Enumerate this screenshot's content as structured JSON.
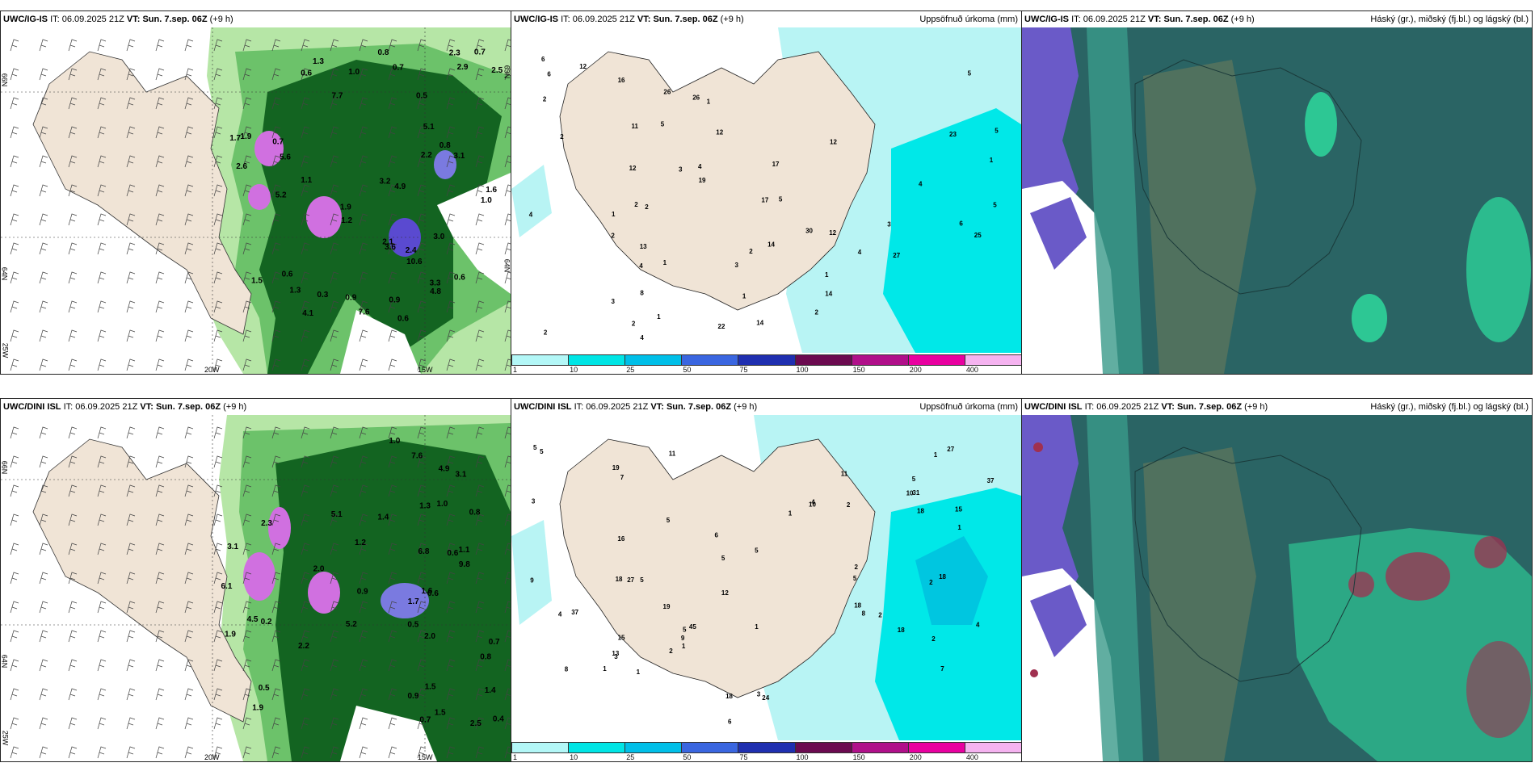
{
  "rows": [
    {
      "model": "UWC/IG-IS",
      "it_label": "IT:",
      "it_value": "06.09.2025 21Z",
      "vt_label": "VT:",
      "vt_value": "Sun. 7.sep. 06Z",
      "lead": "(+9 h)",
      "precip_title": "Uppsöfnuð úrkoma (mm)",
      "cloud_title": "Háský (gr.), miðský (fj.bl.) og lágský (bl.)"
    },
    {
      "model": "UWC/DINI ISL",
      "it_label": "IT:",
      "it_value": "06.09.2025 21Z",
      "vt_label": "VT:",
      "vt_value": "Sun. 7.sep. 06Z",
      "lead": "(+9 h)",
      "precip_title": "Uppsöfnuð úrkoma (mm)",
      "cloud_title": "Háský (gr.), miðský (fj.bl.) og lágský (bl.)"
    }
  ],
  "axis_labels": {
    "lon_20w": "20W",
    "lon_15w": "15W",
    "lat_66n": "66N",
    "lat_64n": "64N",
    "lon_25w": "25W",
    "lat_63n_right": "63N",
    "lat_64n_right": "64N"
  },
  "colorbar": {
    "ticks": [
      "1",
      "10",
      "25",
      "50",
      "75",
      "100",
      "150",
      "200",
      "400"
    ],
    "colors": [
      "#b3f7f7",
      "#00e5e5",
      "#00bfe8",
      "#3a66e0",
      "#1f2fb0",
      "#6b0a50",
      "#b0108a",
      "#e800a0",
      "#f5b3f0"
    ]
  },
  "colors": {
    "land": "#f0e4d6",
    "sea_light": "#b8f4f4",
    "sea_cyan": "#00e8e8",
    "sea_deep": "#00c6e0",
    "green_light": "#b6e6a6",
    "green_mid": "#6cc26a",
    "green_dark": "#0a5a1a",
    "violet": "#d070e0",
    "blue_violet": "#5a4ad0",
    "cloud_teal": "#2a6464",
    "cloud_purple": "#6a5ac8",
    "cloud_green": "#2ee0a0",
    "cloud_red": "#a03050"
  },
  "top_rain_values": [
    "0.6",
    "0.6",
    "0.6",
    "0.7",
    "0.8",
    "0.9",
    "1.0",
    "1.1",
    "1.2",
    "1.3",
    "1.5",
    "1.7",
    "1.9",
    "2.1",
    "2.2",
    "2.3",
    "2.6",
    "2.9",
    "3.0",
    "3.1",
    "3.3",
    "3.6",
    "4.1",
    "4.8",
    "4.9",
    "5.1",
    "5.2",
    "5.6",
    "7.6",
    "7.7",
    "10.6",
    "0.7",
    "0.5",
    "0.3",
    "1.3",
    "0.9",
    "0.8",
    "1.9",
    "1.6",
    "2.4",
    "1.0",
    "3.2",
    "2.5",
    "0.6",
    "0.7"
  ],
  "bottom_rain_values": [
    "0.5",
    "0.7",
    "0.6",
    "0.8",
    "0.9",
    "1.0",
    "1.1",
    "1.2",
    "1.4",
    "1.5",
    "1.6",
    "1.7",
    "1.9",
    "2.0",
    "2.2",
    "2.5",
    "3.1",
    "4.5",
    "4.9",
    "5.1",
    "5.2",
    "6.1",
    "6.8",
    "7.6",
    "9.8",
    "0.5",
    "2.3",
    "1.3",
    "0.4",
    "0.2",
    "0.8",
    "1.0",
    "3.1",
    "1.5",
    "2.0",
    "1.9",
    "1.4",
    "0.9",
    "0.6",
    "0.7"
  ],
  "top_accum_values": [
    "6",
    "6",
    "4",
    "5",
    "5",
    "1",
    "1",
    "1",
    "2",
    "4",
    "4",
    "5",
    "4",
    "2",
    "2",
    "3",
    "3",
    "3",
    "5",
    "4",
    "1",
    "1",
    "1",
    "2",
    "1",
    "14",
    "13",
    "27",
    "22",
    "26",
    "30",
    "26",
    "23",
    "25",
    "17",
    "12",
    "16",
    "19",
    "14",
    "12",
    "11",
    "14",
    "12",
    "12",
    "12",
    "17",
    "8",
    "4",
    "2",
    "2",
    "5",
    "2",
    "2",
    "6",
    "3",
    "2"
  ],
  "bottom_accum_values": [
    "8",
    "8",
    "4",
    "5",
    "7",
    "10",
    "11",
    "1",
    "1",
    "1",
    "2",
    "3",
    "5",
    "5",
    "5",
    "6",
    "5",
    "5",
    "2",
    "1",
    "2",
    "2",
    "2",
    "1",
    "12",
    "15",
    "18",
    "19",
    "27",
    "37",
    "31",
    "37",
    "27",
    "45",
    "24",
    "18",
    "16",
    "18",
    "18",
    "18",
    "13",
    "19",
    "15",
    "9",
    "5",
    "5",
    "10",
    "11",
    "3",
    "5",
    "4",
    "4",
    "6",
    "3",
    "2",
    "9",
    "18",
    "7",
    "1",
    "1"
  ]
}
